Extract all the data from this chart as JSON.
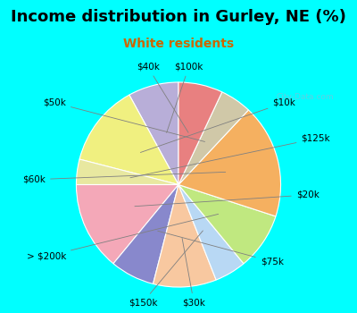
{
  "title": "Income distribution in Gurley, NE (%)",
  "subtitle": "White residents",
  "background_color": "#00FFFF",
  "chart_bg_color": "#e8f5ee",
  "labels": [
    "$100k",
    "$10k",
    "$125k",
    "$20k",
    "$75k",
    "$30k",
    "$150k",
    "> $200k",
    "$60k",
    "$50k",
    "$40k"
  ],
  "sizes": [
    8,
    13,
    4,
    14,
    7,
    10,
    5,
    9,
    18,
    5,
    7
  ],
  "colors": [
    "#b8aed8",
    "#f0f080",
    "#e8e8a0",
    "#f4a8b8",
    "#8888cc",
    "#f8c8a0",
    "#b8d8f4",
    "#c0e880",
    "#f5b060",
    "#d0c8a8",
    "#e88080"
  ],
  "startangle": 90,
  "label_fontsize": 7.5,
  "title_fontsize": 13,
  "subtitle_fontsize": 10,
  "subtitle_color": "#cc6600",
  "watermark": "City-Data.com",
  "watermark_color": "#aaaacc"
}
